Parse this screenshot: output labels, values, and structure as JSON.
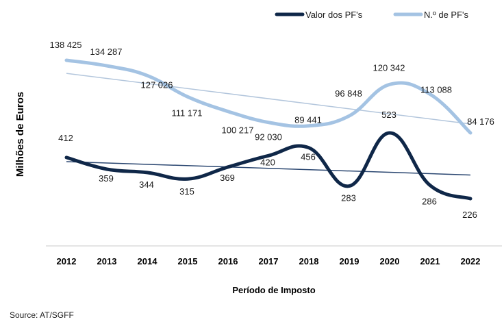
{
  "chart_data": {
    "type": "line",
    "title": "",
    "ylabel": "Milhões de Euros",
    "xlabel": "Período de Imposto",
    "x": [
      "2012",
      "2013",
      "2014",
      "2015",
      "2016",
      "2017",
      "2018",
      "2019",
      "2020",
      "2021",
      "2022"
    ],
    "legend_position": "top-right",
    "series": [
      {
        "name": "Valor dos PF's",
        "color": "#0f2748",
        "values": [
          412,
          359,
          344,
          315,
          369,
          420,
          456,
          283,
          523,
          286,
          226
        ],
        "labels": [
          "412",
          "359",
          "344",
          "315",
          "369",
          "420",
          "456",
          "283",
          "523",
          "286",
          "226"
        ],
        "trendline": true,
        "trend_color": "#2a4670"
      },
      {
        "name": "N.º de PF's",
        "color": "#a4c3e3",
        "values": [
          138425,
          134287,
          127026,
          111171,
          100217,
          92030,
          89441,
          96848,
          120342,
          113088,
          84176
        ],
        "labels": [
          "138 425",
          "134 287",
          "127 026",
          "111 171",
          "100 217",
          "92 030",
          "89 441",
          "96 848",
          "120 342",
          "113 088",
          "84 176"
        ],
        "trendline": true,
        "trend_color": "#b3c6dc"
      }
    ],
    "grid": false
  },
  "source": "Source: AT/SGFF"
}
